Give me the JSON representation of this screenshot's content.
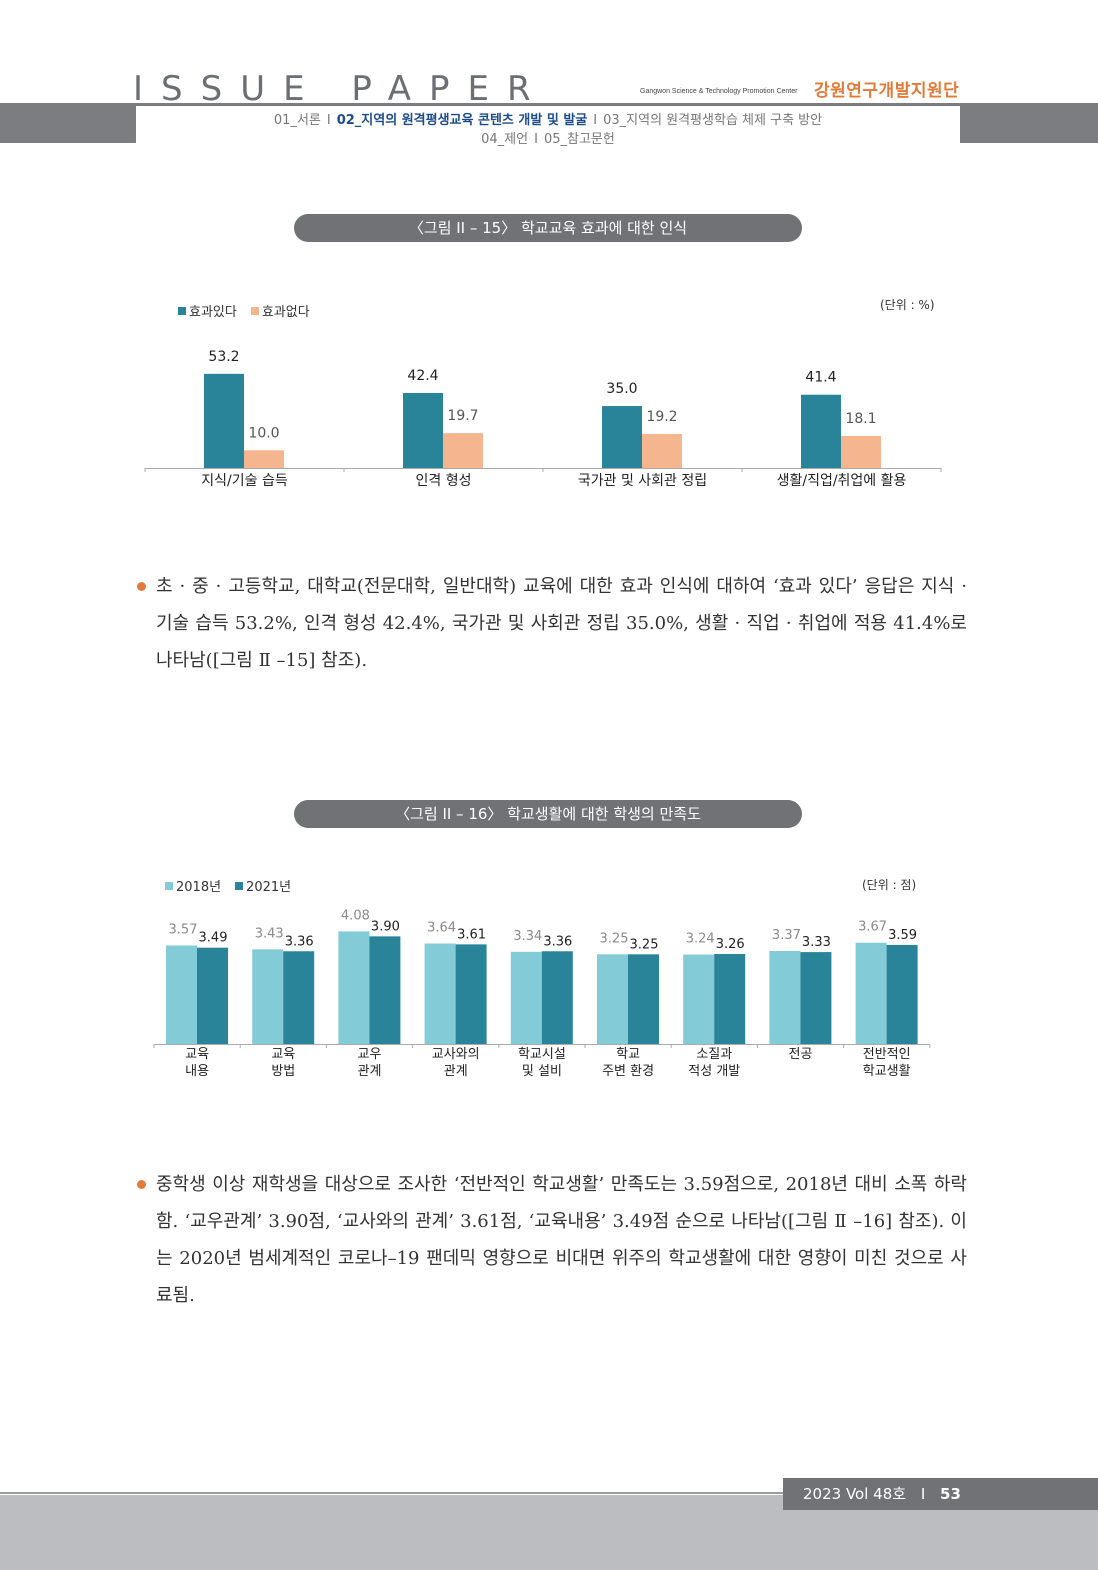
{
  "header": {
    "title": "ISSUE PAPER",
    "org_en": "Gangwon Science & Technology Promotion Center",
    "org_kr": "강원연구개발지원단",
    "nav": {
      "item1": "01_서론",
      "item2": "02_지역의 원격평생교육 콘텐츠 개발 및 발굴",
      "item3": "03_지역의 원격평생학습 체제 구축 방안",
      "item4": "04_제언",
      "item5": "05_참고문헌",
      "sep": "I"
    }
  },
  "figure1": {
    "caption": "〈그림 II – 15〉 학교교육 효과에 대한 인식",
    "unit": "(단위 : %)",
    "colors": {
      "effective": "#2a8499",
      "not_effective": "#f5b58f"
    }
  },
  "figure2": {
    "caption": "〈그림 II – 16〉 학교생활에 대한 학생의 만족도",
    "unit": "(단위 : 점)",
    "colors": {
      "y2018": "#84cbd8",
      "y2021": "#2a8499"
    }
  },
  "chart_data": [
    {
      "type": "bar",
      "categories": [
        "지식/기술 습득",
        "인격 형성",
        "국가관 및 사회관 정립",
        "생활/직업/취업에 활용"
      ],
      "series": [
        {
          "name": "효과있다",
          "values": [
            53.2,
            42.4,
            35.0,
            41.4
          ],
          "labels": [
            "53.2",
            "42.4",
            "35.0",
            "41.4"
          ]
        },
        {
          "name": "효과없다",
          "values": [
            10.0,
            19.7,
            19.2,
            18.1
          ],
          "labels": [
            "10.0",
            "19.7",
            "19.2",
            "18.1"
          ]
        }
      ],
      "ylim": [
        0,
        60
      ],
      "legend": "top-left"
    },
    {
      "type": "bar",
      "categories": [
        [
          "교육",
          "내용"
        ],
        [
          "교육",
          "방법"
        ],
        [
          "교우",
          "관계"
        ],
        [
          "교사와의",
          "관계"
        ],
        [
          "학교시설",
          "및 설비"
        ],
        [
          "학교",
          "주변 환경"
        ],
        [
          "소질과",
          "적성 개발"
        ],
        [
          "전공"
        ],
        [
          "전반적인",
          "학교생활"
        ]
      ],
      "series": [
        {
          "name": "2018년",
          "values": [
            3.57,
            3.43,
            4.08,
            3.64,
            3.34,
            3.25,
            3.24,
            3.37,
            3.67
          ],
          "labels": [
            "3.57",
            "3.43",
            "4.08",
            "3.64",
            "3.34",
            "3.25",
            "3.24",
            "3.37",
            "3.67"
          ]
        },
        {
          "name": "2021년",
          "values": [
            3.49,
            3.36,
            3.9,
            3.61,
            3.36,
            3.25,
            3.26,
            3.33,
            3.59
          ],
          "labels": [
            "3.49",
            "3.36",
            "3.90",
            "3.61",
            "3.36",
            "3.25",
            "3.26",
            "3.33",
            "3.59"
          ]
        }
      ],
      "ylim": [
        0,
        4.5
      ],
      "legend": "top-left"
    }
  ],
  "paragraph1": "초 · 중 · 고등학교, 대학교(전문대학, 일반대학) 교육에 대한 효과 인식에 대하여 ‘효과 있다’ 응답은 지식 · 기술 습득 53.2%, 인격 형성 42.4%, 국가관 및 사회관 정립 35.0%, 생활 · 직업 · 취업에 적용 41.4%로 나타남([그림 Ⅱ –15] 참조).",
  "paragraph2": "중학생 이상 재학생을 대상으로 조사한 ‘전반적인 학교생활’ 만족도는 3.59점으로, 2018년 대비 소폭 하락함. ‘교우관계’ 3.90점, ‘교사와의 관계’ 3.61점, ‘교육내용’ 3.49점 순으로 나타남([그림 Ⅱ –16]  참조). 이는 2020년 범세계적인 코로나–19  팬데믹 영향으로 비대면 위주의 학교생활에 대한 영향이 미친 것으로 사료됨.",
  "footer": {
    "issue": "2023 Vol 48호",
    "sep": "I",
    "page": "53"
  }
}
